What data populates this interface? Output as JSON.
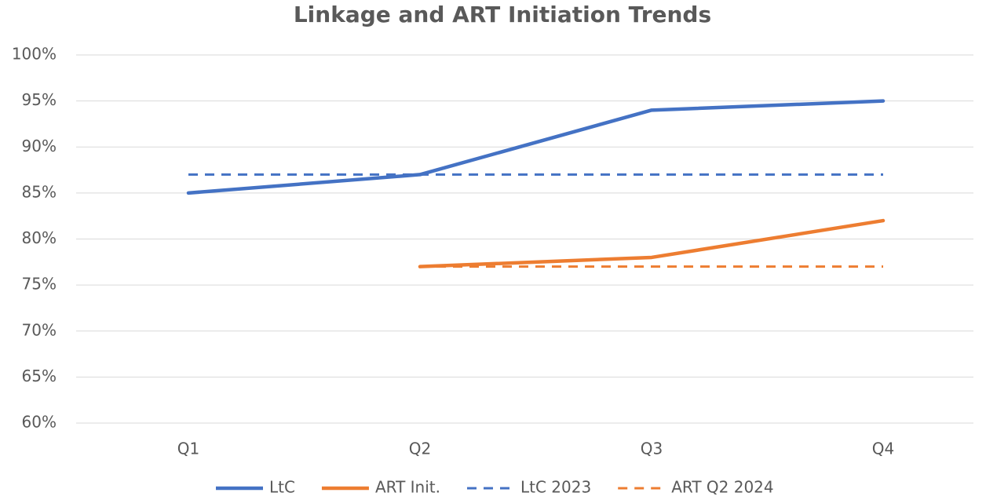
{
  "chart_data": {
    "type": "line",
    "title": "Linkage and ART Initiation Trends",
    "categories": [
      "Q1",
      "Q2",
      "Q3",
      "Q4"
    ],
    "series": [
      {
        "name": "LtC",
        "color": "#4472c4",
        "dashed": false,
        "values": [
          85,
          87,
          94,
          95
        ]
      },
      {
        "name": "ART Init.",
        "color": "#ed7d31",
        "dashed": false,
        "values": [
          null,
          77,
          78,
          82
        ]
      },
      {
        "name": "LtC 2023",
        "color": "#4472c4",
        "dashed": true,
        "values": [
          87,
          87,
          87,
          87
        ]
      },
      {
        "name": "ART Q2 2024",
        "color": "#ed7d31",
        "dashed": true,
        "values": [
          null,
          77,
          77,
          77
        ]
      }
    ],
    "ylim": [
      60,
      100
    ],
    "yticks": [
      {
        "value": 60,
        "label": "60%"
      },
      {
        "value": 65,
        "label": "65%"
      },
      {
        "value": 70,
        "label": "70%"
      },
      {
        "value": 75,
        "label": "75%"
      },
      {
        "value": 80,
        "label": "80%"
      },
      {
        "value": 85,
        "label": "85%"
      },
      {
        "value": 90,
        "label": "90%"
      },
      {
        "value": 95,
        "label": "95%"
      },
      {
        "value": 100,
        "label": "100%"
      }
    ],
    "grid": true,
    "legend": "bottom"
  }
}
